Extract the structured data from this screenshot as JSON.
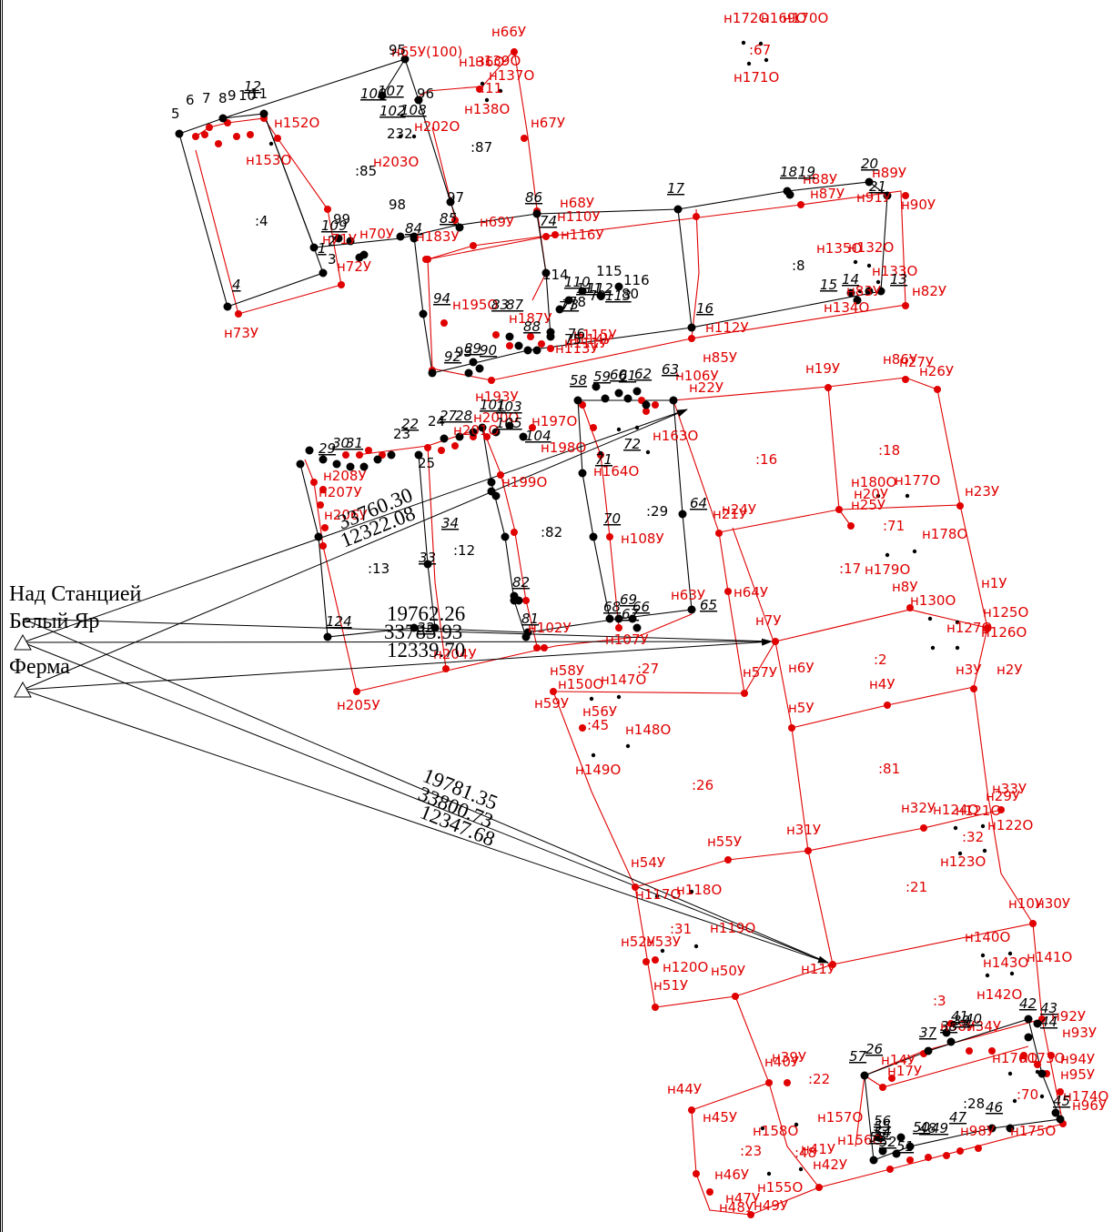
{
  "stations": [
    {
      "name": "Над Станцией"
    },
    {
      "name": "Белый Яр"
    },
    {
      "name": "Ферма"
    }
  ],
  "distances": [
    "19781.35",
    "33800.73",
    "12347.68",
    "19762.26",
    "33785.93",
    "12339.70",
    "33760.30",
    "12322.08"
  ],
  "colors": {
    "red": "#e00000",
    "black": "#000000"
  },
  "parcels": [
    ":4",
    ":85",
    ":87",
    ":8",
    ":16",
    ":18",
    ":71",
    ":17",
    ":29",
    ":82",
    ":12",
    ":13",
    ":2",
    ":27",
    ":45",
    ":26",
    ":81",
    ":32",
    ":21",
    ":31",
    ":3",
    ":22",
    ":70",
    ":28",
    ":23",
    ":48",
    ":11",
    ":67"
  ],
  "red_labels": [
    "н66У",
    "н65У(100)",
    "н136О",
    "н137О",
    "н138О",
    "н139О",
    "н67У",
    "н68У",
    "н69У",
    "н70У",
    "н71У",
    "н72У",
    "н73У",
    "н152О",
    "н153О",
    "н202О",
    "н203О",
    "н110У",
    "н116У",
    "н112У",
    "н85У",
    "н106У",
    "н22У",
    "н19У",
    "н26У",
    "н27У",
    "н86У",
    "н87У",
    "н88У",
    "н89У",
    "н90У",
    "н91У",
    "н132О",
    "н133О",
    "н134О",
    "н135О",
    "н82У",
    "н83У",
    "н183У",
    "н195О",
    "н187У",
    "н113У",
    "н114У",
    "н193У",
    "н197О",
    "н198О",
    "н199О",
    "н200О",
    "н201О",
    "н208У",
    "н207У",
    "н206У",
    "н163О",
    "н164О",
    "н108У",
    "н21У",
    "н24У",
    "н20У",
    "н25У",
    "н180О",
    "н177О",
    "н178О",
    "н179О",
    "н23У",
    "н64У",
    "н7У",
    "н57У",
    "н6У",
    "н8У",
    "н1У",
    "н130О",
    "н125О",
    "н126О",
    "н127О",
    "н4У",
    "н3У",
    "н2У",
    "н5У",
    "н58У",
    "н59У",
    "н56У",
    "н147О",
    "н148О",
    "н149О",
    "н150О",
    "н107У",
    "н102У",
    "н204У",
    "н205У",
    "н63У",
    "н32У",
    "н33У",
    "н29У",
    "н121О",
    "н122О",
    "н123О",
    "н124О",
    "н31У",
    "н55У",
    "н54У",
    "н117О",
    "н118О",
    "н119О",
    "н120О",
    "н52У",
    "н53У",
    "н51У",
    "н50У",
    "н11У",
    "н10У",
    "н30У",
    "н140О",
    "н141О",
    "н142О",
    "н143О",
    "н92У",
    "н93У",
    "н94У",
    "н95У",
    "н96У",
    "н174О",
    "н175О",
    "н176О",
    "н173О",
    "н14У",
    "н17У",
    "н44У",
    "н45У",
    "н46У",
    "н47У",
    "н48У",
    "н49У",
    "н157О",
    "н158О",
    "н155О",
    "н156О",
    "н40У",
    "н39У",
    "н41У",
    "н42У",
    "н34У",
    "н98У",
    "н38У",
    "н170О",
    "н171О",
    "н169О",
    "н172О",
    "н111У",
    "н115У"
  ],
  "black_labels": [
    "95",
    "96",
    "100",
    "107",
    "108",
    "102",
    "232",
    "98",
    "97",
    "99",
    "84",
    "85",
    "86",
    "74",
    "109",
    "1",
    "2",
    "3",
    "4",
    "5",
    "6",
    "7",
    "8",
    "9",
    "10",
    "11",
    "12",
    "17",
    "16",
    "18",
    "19",
    "20",
    "21",
    "13",
    "14",
    "15",
    "94",
    "92",
    "93",
    "90",
    "89",
    "88",
    "87",
    "83",
    "73",
    "76",
    "77",
    "78",
    "79",
    "80",
    "75",
    "114",
    "115",
    "116",
    "110",
    "111",
    "112",
    "113",
    "58",
    "59",
    "60",
    "61",
    "62",
    "63",
    "71",
    "72",
    "101",
    "103",
    "104",
    "105",
    "22",
    "23",
    "24",
    "25",
    "27",
    "28",
    "29",
    "30",
    "31",
    "34",
    "33",
    "32",
    "124",
    "81",
    "82",
    "64",
    "65",
    "66",
    "68",
    "69",
    "70",
    "67",
    "26",
    "37",
    "38",
    "39",
    "40",
    "41",
    "42",
    "43",
    "44",
    "45",
    "46",
    "47",
    "48",
    "49",
    "50",
    "51",
    "52",
    "53",
    "54",
    "55",
    "56",
    "57"
  ]
}
